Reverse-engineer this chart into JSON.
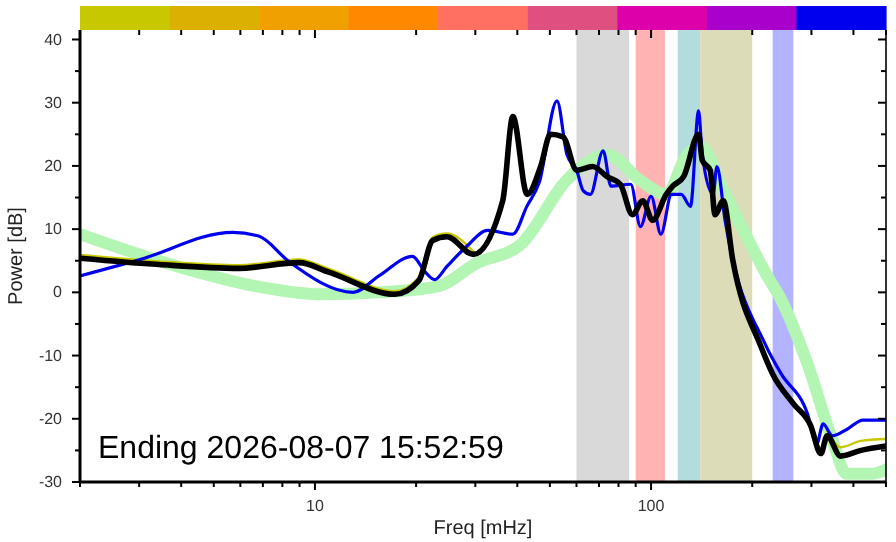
{
  "chart_data": {
    "type": "line",
    "xlabel": "Freq [mHz]",
    "ylabel": "Power [dB]",
    "log": "x",
    "xlim": [
      2,
      500
    ],
    "ylim": [
      -30,
      41.5
    ],
    "xticks": [
      {
        "value": 2,
        "label": null
      },
      {
        "value": 3,
        "label": null
      },
      {
        "value": 4,
        "label": null
      },
      {
        "value": 5,
        "label": null
      },
      {
        "value": 6,
        "label": null
      },
      {
        "value": 7,
        "label": null
      },
      {
        "value": 8,
        "label": null
      },
      {
        "value": 9,
        "label": null
      },
      10,
      {
        "value": 20,
        "label": null
      },
      {
        "value": 30,
        "label": null
      },
      {
        "value": 40,
        "label": null
      },
      {
        "value": 50,
        "label": null
      },
      {
        "value": 60,
        "label": null
      },
      {
        "value": 70,
        "label": null
      },
      {
        "value": 80,
        "label": null
      },
      {
        "value": 90,
        "label": null
      },
      100,
      {
        "value": 200,
        "label": null
      },
      {
        "value": 300,
        "label": null
      },
      {
        "value": 400,
        "label": null
      },
      {
        "value": 500,
        "label": null
      }
    ],
    "yticks": [
      -30,
      {
        "value": -25,
        "label": null
      },
      -20,
      {
        "value": -15,
        "label": null
      },
      -10,
      {
        "value": -5,
        "label": null
      },
      0,
      {
        "value": 5,
        "label": null
      },
      10,
      {
        "value": 15,
        "label": null
      },
      20,
      {
        "value": 25,
        "label": null
      },
      30,
      {
        "value": 35,
        "label": null
      },
      40
    ],
    "grid": false,
    "bands": [
      {
        "axis": "x",
        "from": 60,
        "to": 86,
        "color": "#d9d9d9"
      },
      {
        "axis": "x",
        "from": 90,
        "to": 110,
        "color": "#ffb3b3"
      },
      {
        "axis": "x",
        "from": 120,
        "to": 140,
        "color": "#b3dcdc"
      },
      {
        "axis": "x",
        "from": 140,
        "to": 200,
        "color": "#dcdcb8"
      },
      {
        "axis": "x",
        "from": 230,
        "to": 265,
        "color": "#b3b3ff"
      }
    ],
    "annotations": [
      "Ending 2026-08-07 15:52:59"
    ],
    "series": [
      {
        "color": "#b3f5b3",
        "x": [
          2,
          3.9,
          6.8,
          10.3,
          15.5,
          23.4,
          30,
          41,
          56,
          66,
          74,
          93,
          111,
          128,
          141,
          162,
          186,
          220,
          244,
          292,
          346,
          382,
          455,
          500
        ],
        "values": [
          9.2,
          4.1,
          0.9,
          -0.3,
          0,
          1,
          4.5,
          7.6,
          17.7,
          20.9,
          21.8,
          17.7,
          15.5,
          21.8,
          23,
          16.8,
          10.4,
          2.9,
          -1.2,
          -11.3,
          -23.3,
          -28.7,
          -28.7,
          -28
        ]
      },
      {
        "color": "#c8c800",
        "x": [
          2,
          3.44,
          5.94,
          8.96,
          11,
          17.3,
          20.4,
          22.4,
          24.7,
          29.6,
          36.2,
          38.8,
          42.8,
          47,
          50.2,
          54.7,
          60.1,
          67,
          74,
          81,
          88,
          94.5,
          101,
          111,
          116,
          125,
          138.5,
          142,
          150,
          155,
          164,
          175,
          212,
          230,
          265,
          298,
          320,
          334,
          366,
          421,
          500
        ],
        "values": [
          5.9,
          4.9,
          4.3,
          5.2,
          3.7,
          0.2,
          2.4,
          8.7,
          9.3,
          6.5,
          null,
          null,
          null,
          null,
          null,
          null,
          null,
          null,
          null,
          null,
          null,
          null,
          null,
          null,
          null,
          null,
          null,
          null,
          null,
          null,
          null,
          null,
          null,
          null,
          null,
          null,
          null,
          -21.8,
          -24.5,
          -23.5,
          -23.2
        ]
      },
      {
        "color": "#0000ee",
        "x": [
          2,
          2.98,
          5.7,
          6.8,
          8.4,
          13,
          15.5,
          19.5,
          21.3,
          22.7,
          24.7,
          28.3,
          32.6,
          38.8,
          42.7,
          46.5,
          52.5,
          56.2,
          60.1,
          62.8,
          66,
          72,
          76,
          87,
          93,
          100,
          107,
          115,
          123,
          131,
          138.5,
          142,
          153,
          157,
          166,
          220,
          244,
          292,
          311,
          325,
          346,
          382,
          427,
          500
        ],
        "values": [
          2.6,
          5.1,
          9.5,
          8.9,
          4.8,
          0,
          2.6,
          5.7,
          3.2,
          2,
          4.1,
          7.3,
          9.8,
          9.2,
          13.6,
          17.4,
          30.3,
          21.8,
          19.3,
          16.1,
          15.5,
          22.4,
          16.8,
          17.1,
          10.4,
          15.2,
          9.2,
          15.5,
          15.5,
          13.6,
          28.7,
          21.8,
          15.5,
          19.9,
          11.4,
          -8.5,
          -12.9,
          -19.2,
          -24,
          -20.8,
          -22.7,
          -21.7,
          -20.2,
          -20.2
        ]
      },
      {
        "color": "#000000",
        "x": [
          2,
          3.44,
          5.94,
          8.96,
          11,
          17.3,
          20.4,
          22.4,
          24.7,
          29.6,
          36.2,
          38.8,
          42.8,
          47,
          50.2,
          54.7,
          60.1,
          67,
          74,
          81,
          88,
          94.5,
          101,
          111,
          116,
          125,
          138.5,
          142,
          150,
          155,
          164,
          175,
          212,
          230,
          265,
          298,
          320,
          334,
          366,
          421,
          500
        ],
        "values": [
          5.4,
          4.4,
          3.8,
          4.7,
          3.2,
          -0.3,
          1.9,
          8.2,
          8.8,
          6,
          14.5,
          27.8,
          15.5,
          20,
          25,
          24.6,
          19.3,
          19.9,
          18.3,
          17.1,
          12.3,
          14.5,
          11.4,
          15.5,
          16.8,
          18.3,
          25,
          20.9,
          19.3,
          12.3,
          14.5,
          5.1,
          -8.5,
          -12.9,
          -17.6,
          -21,
          -25.5,
          -22.7,
          -25.9,
          -25,
          -24.3
        ]
      }
    ]
  }
}
